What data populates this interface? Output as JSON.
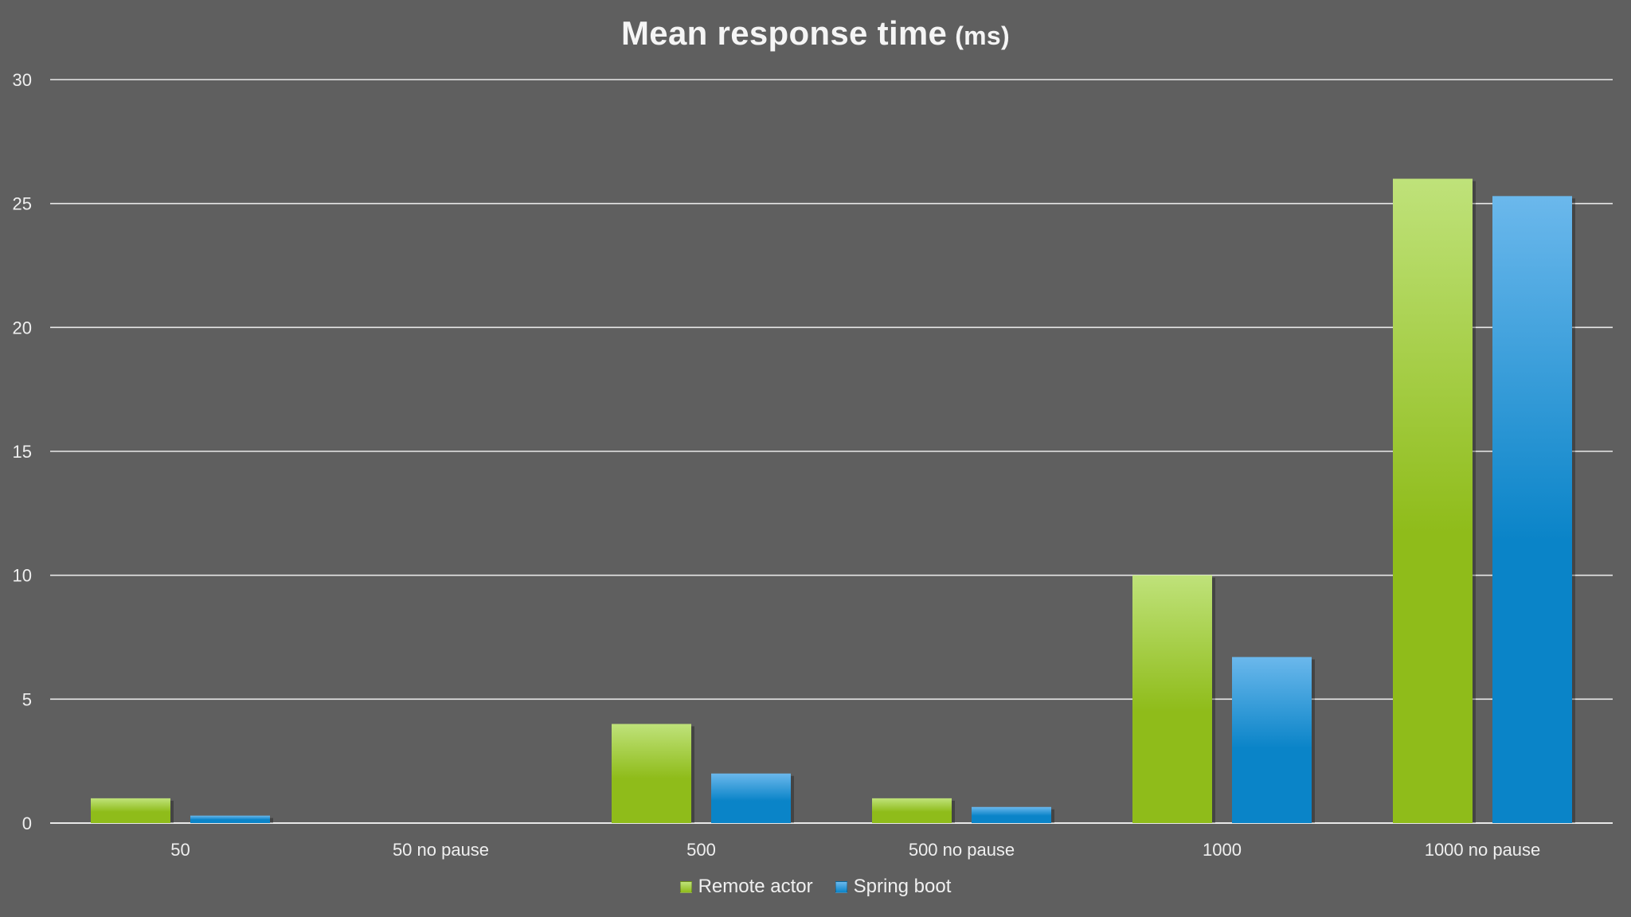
{
  "chart_data": {
    "type": "bar",
    "title": "Mean response time",
    "title_unit": "(ms)",
    "xlabel": "",
    "ylabel": "",
    "categories": [
      "50",
      "50 no pause",
      "500",
      "500 no pause",
      "1000",
      "1000 no pause"
    ],
    "series": [
      {
        "name": "Remote actor",
        "color": "#8fbc1a",
        "color_light": "#bfe27a",
        "values": [
          1,
          0,
          4,
          1,
          10,
          26
        ]
      },
      {
        "name": "Spring boot",
        "color": "#0a84c8",
        "color_light": "#6bb8ec",
        "values": [
          0.3,
          0,
          2,
          0.65,
          6.7,
          25.3
        ]
      }
    ],
    "ylim": [
      0,
      30
    ],
    "yticks": [
      0,
      5,
      10,
      15,
      20,
      25,
      30
    ],
    "grid": true,
    "legend_position": "bottom"
  },
  "background_color": "#5f5f5f",
  "gridline_color": "#e8e8e8"
}
